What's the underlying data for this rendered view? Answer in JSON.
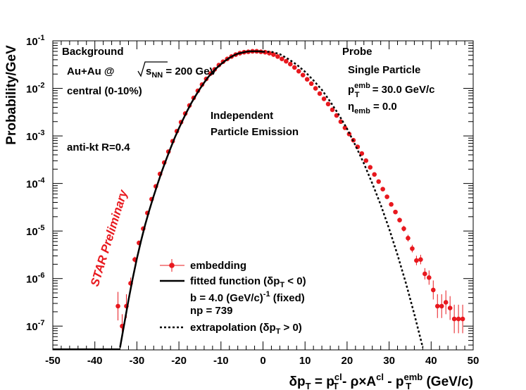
{
  "chart_data": {
    "type": "scatter",
    "ylabel": "Probability/GeV",
    "xlabel": {
      "main": "δp",
      "main_sub": "T",
      "eq": " = p",
      "p1_sup": "cl",
      "p1_sub": "T",
      "mid": " - ρ×A",
      "a_sup": "cl",
      "minus": " - p",
      "p2_sup": "emb",
      "p2_sub": "T",
      "unit": " (GeV/c)"
    },
    "xlim": [
      -50,
      50
    ],
    "ylim_log10": [
      -7.5,
      -1
    ],
    "log_y": true,
    "x_ticks": [
      "-50",
      "-40",
      "-30",
      "-20",
      "-10",
      "0",
      "10",
      "20",
      "30",
      "40",
      "50"
    ],
    "y_ticks": [
      {
        "exp": -1,
        "base": "10",
        "sup": "-1"
      },
      {
        "exp": -2,
        "base": "10",
        "sup": "-2"
      },
      {
        "exp": -3,
        "base": "10",
        "sup": "-3"
      },
      {
        "exp": -4,
        "base": "10",
        "sup": "-4"
      },
      {
        "exp": -5,
        "base": "10",
        "sup": "-5"
      },
      {
        "exp": -6,
        "base": "10",
        "sup": "-6"
      },
      {
        "exp": -7,
        "base": "10",
        "sup": "-7"
      }
    ],
    "grid": false,
    "legend_position": "bottom-center",
    "annotations": {
      "background": "Background",
      "collision_prefix": "Au+Au @",
      "collision_s": "s",
      "collision_nn": "NN",
      "collision_suffix": " = 200 GeV",
      "centrality": "central (0-10%)",
      "algo": "anti-kt   R=0.4",
      "model_line1": "Independent",
      "model_line2": "Particle Emission",
      "probe": "Probe",
      "probe_type": "Single Particle",
      "probe_pt_p": "p",
      "probe_pt_sup": "emb",
      "probe_pt_sub": "T",
      "probe_pt_val": " = 30.0 GeV/c",
      "probe_eta": "η",
      "probe_eta_sub": "emb",
      "probe_eta_val": " = 0.0",
      "preliminary": "STAR Preliminary"
    },
    "legend": {
      "embedding": "embedding",
      "fit_prefix": "fitted function (δp",
      "fit_sub": "T",
      "fit_suffix": " < 0)",
      "b_prefix": "b = 4.0 (GeV/c)",
      "b_sup": "-1",
      "b_suffix": " (fixed)",
      "np": "np = 739",
      "extrap_prefix": "extrapolation (δp",
      "extrap_sub": "T",
      "extrap_suffix": " > 0)"
    },
    "series": [
      {
        "name": "embedding",
        "style": "markers",
        "color": "#e8181e",
        "x": [
          -34.5,
          -33.5,
          -32.5,
          -31.5,
          -30.5,
          -29.5,
          -28.5,
          -27.5,
          -26.5,
          -25.5,
          -24.5,
          -23.5,
          -22.5,
          -21.5,
          -20.5,
          -19.5,
          -18.5,
          -17.5,
          -16.5,
          -15.5,
          -14.5,
          -13.5,
          -12.5,
          -11.5,
          -10.5,
          -9.5,
          -8.5,
          -7.5,
          -6.5,
          -5.5,
          -4.5,
          -3.5,
          -2.5,
          -1.5,
          -0.5,
          0.5,
          1.5,
          2.5,
          3.5,
          4.5,
          5.5,
          6.5,
          7.5,
          8.5,
          9.5,
          10.5,
          11.5,
          12.5,
          13.5,
          14.5,
          15.5,
          16.5,
          17.5,
          18.5,
          19.5,
          20.5,
          21.5,
          22.5,
          23.5,
          24.5,
          25.5,
          26.5,
          27.5,
          28.5,
          29.5,
          30.5,
          31.5,
          32.5,
          33.5,
          34.5,
          35.5,
          36.5,
          37.5,
          38.5,
          39.5,
          40.5,
          41.5,
          42.5,
          43.5,
          44.5,
          45.5,
          46.5,
          47.5
        ],
        "log10_y": [
          -6.58,
          -7.0,
          -6.58,
          -6.1,
          -5.6,
          -5.25,
          -4.95,
          -4.62,
          -4.33,
          -4.06,
          -3.8,
          -3.56,
          -3.33,
          -3.11,
          -2.9,
          -2.71,
          -2.53,
          -2.36,
          -2.2,
          -2.05,
          -1.92,
          -1.8,
          -1.69,
          -1.6,
          -1.51,
          -1.44,
          -1.38,
          -1.33,
          -1.29,
          -1.26,
          -1.24,
          -1.23,
          -1.22,
          -1.22,
          -1.23,
          -1.24,
          -1.26,
          -1.29,
          -1.33,
          -1.38,
          -1.43,
          -1.49,
          -1.56,
          -1.64,
          -1.72,
          -1.81,
          -1.9,
          -2.0,
          -2.11,
          -2.22,
          -2.33,
          -2.45,
          -2.57,
          -2.7,
          -2.83,
          -2.96,
          -3.09,
          -3.23,
          -3.37,
          -3.52,
          -3.66,
          -3.81,
          -3.96,
          -4.12,
          -4.28,
          -4.44,
          -4.6,
          -4.77,
          -4.95,
          -5.15,
          -5.37,
          -5.62,
          -5.6,
          -5.9,
          -5.98,
          -6.24,
          -6.58,
          -6.58,
          -6.5,
          -6.62,
          -6.85,
          -6.85,
          -6.85
        ],
        "log10_err": [
          0.3,
          0.25,
          0.25,
          0.12,
          0.06,
          0.05,
          0.04,
          0.03,
          0.02,
          0.02,
          0.01,
          0.01,
          0.0,
          0.0,
          0.0,
          0.0,
          0.0,
          0.0,
          0.0,
          0.0,
          0.0,
          0.0,
          0.0,
          0.0,
          0.0,
          0.0,
          0.0,
          0.0,
          0.0,
          0.0,
          0.0,
          0.0,
          0.0,
          0.0,
          0.0,
          0.0,
          0.0,
          0.0,
          0.0,
          0.0,
          0.0,
          0.0,
          0.0,
          0.0,
          0.0,
          0.0,
          0.0,
          0.0,
          0.0,
          0.0,
          0.0,
          0.0,
          0.0,
          0.0,
          0.0,
          0.0,
          0.0,
          0.0,
          0.0,
          0.01,
          0.01,
          0.01,
          0.02,
          0.02,
          0.03,
          0.03,
          0.04,
          0.05,
          0.06,
          0.07,
          0.08,
          0.1,
          0.1,
          0.12,
          0.15,
          0.2,
          0.25,
          0.25,
          0.25,
          0.25,
          0.3,
          0.3,
          0.3
        ]
      },
      {
        "name": "fitted function",
        "style": "solid",
        "color": "#000000",
        "x": [
          -34,
          -33,
          -32,
          -31,
          -30,
          -29,
          -28,
          -27,
          -26,
          -25,
          -24,
          -23,
          -22,
          -21,
          -20,
          -19,
          -18,
          -17,
          -16,
          -15,
          -14,
          -13,
          -12,
          -11,
          -10,
          -9,
          -8,
          -7,
          -6,
          -5,
          -4,
          -3,
          -2,
          -1,
          0
        ],
        "log10_y": [
          -7.45,
          -6.95,
          -6.45,
          -6.0,
          -5.58,
          -5.2,
          -4.86,
          -4.55,
          -4.26,
          -3.99,
          -3.73,
          -3.49,
          -3.26,
          -3.04,
          -2.84,
          -2.65,
          -2.47,
          -2.3,
          -2.15,
          -2.01,
          -1.88,
          -1.76,
          -1.66,
          -1.57,
          -1.49,
          -1.42,
          -1.36,
          -1.31,
          -1.27,
          -1.25,
          -1.23,
          -1.22,
          -1.22,
          -1.22,
          -1.23
        ]
      },
      {
        "name": "extrapolation",
        "style": "dashed",
        "color": "#000000",
        "x": [
          0,
          2,
          4,
          6,
          8,
          10,
          12,
          14,
          16,
          18,
          20,
          22,
          24,
          26,
          28,
          30,
          32,
          34,
          36,
          38
        ],
        "log10_y": [
          -1.23,
          -1.23,
          -1.28,
          -1.38,
          -1.5,
          -1.65,
          -1.83,
          -2.03,
          -2.28,
          -2.55,
          -2.85,
          -3.2,
          -3.58,
          -4.0,
          -4.45,
          -4.95,
          -5.5,
          -6.1,
          -6.75,
          -7.45
        ]
      }
    ]
  }
}
